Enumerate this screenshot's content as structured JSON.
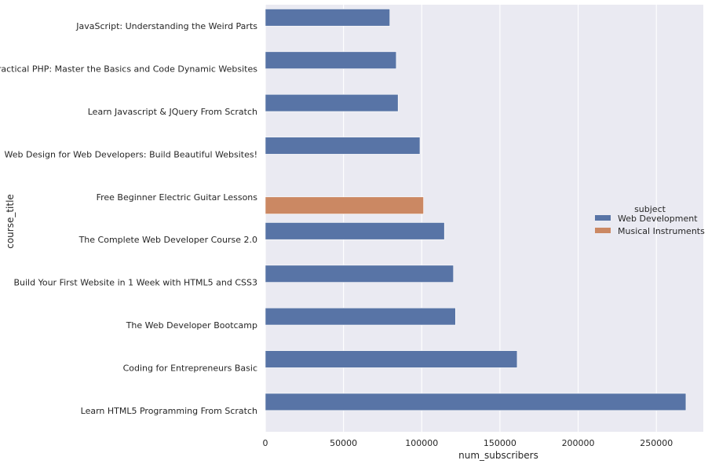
{
  "chart_data": {
    "type": "bar",
    "orientation": "horizontal",
    "title": "",
    "xlabel": "num_subscribers",
    "ylabel": "course_title",
    "xlim": [
      0,
      280000
    ],
    "xticks": [
      0,
      50000,
      100000,
      150000,
      200000,
      250000
    ],
    "grid": true,
    "legend_placement": "center-right",
    "legend_title": "subject",
    "series": [
      {
        "name": "Web Development",
        "color": "#5874a6"
      },
      {
        "name": "Musical Instruments",
        "color": "#cb8863"
      }
    ],
    "categories": [
      "JavaScript: Understanding the Weird Parts",
      "Practical PHP: Master the Basics and Code Dynamic Websites",
      "Learn Javascript & JQuery From Scratch",
      "Web Design for Web Developers: Build Beautiful Websites!",
      "Free Beginner Electric Guitar Lessons",
      "The Complete Web Developer Course 2.0",
      "Build Your First Website in 1 Week with HTML5 and CSS3",
      "The Web Developer Bootcamp",
      "Coding for Entrepreneurs Basic",
      "Learn HTML5 Programming From Scratch"
    ],
    "bars": [
      {
        "category": "JavaScript: Understanding the Weird Parts",
        "subject": "Web Development",
        "value": 79612
      },
      {
        "category": "Practical PHP: Master the Basics and Code Dynamic Websites",
        "subject": "Web Development",
        "value": 83737
      },
      {
        "category": "Learn Javascript & JQuery From Scratch",
        "subject": "Web Development",
        "value": 84897
      },
      {
        "category": "Web Design for Web Developers: Build Beautiful Websites!",
        "subject": "Web Development",
        "value": 98867
      },
      {
        "category": "Free Beginner Electric Guitar Lessons",
        "subject": "Musical Instruments",
        "value": 101154
      },
      {
        "category": "The Complete Web Developer Course 2.0",
        "subject": "Web Development",
        "value": 114512
      },
      {
        "category": "Build Your First Website in 1 Week with HTML5 and CSS3",
        "subject": "Web Development",
        "value": 120291
      },
      {
        "category": "The Web Developer Bootcamp",
        "subject": "Web Development",
        "value": 121584
      },
      {
        "category": "Coding for Entrepreneurs Basic",
        "subject": "Web Development",
        "value": 161029
      },
      {
        "category": "Learn HTML5 Programming From Scratch",
        "subject": "Web Development",
        "value": 268923
      }
    ],
    "colors": {
      "plot_background": "#eaeaf2",
      "grid": "#ffffff",
      "text": "#262626"
    }
  }
}
